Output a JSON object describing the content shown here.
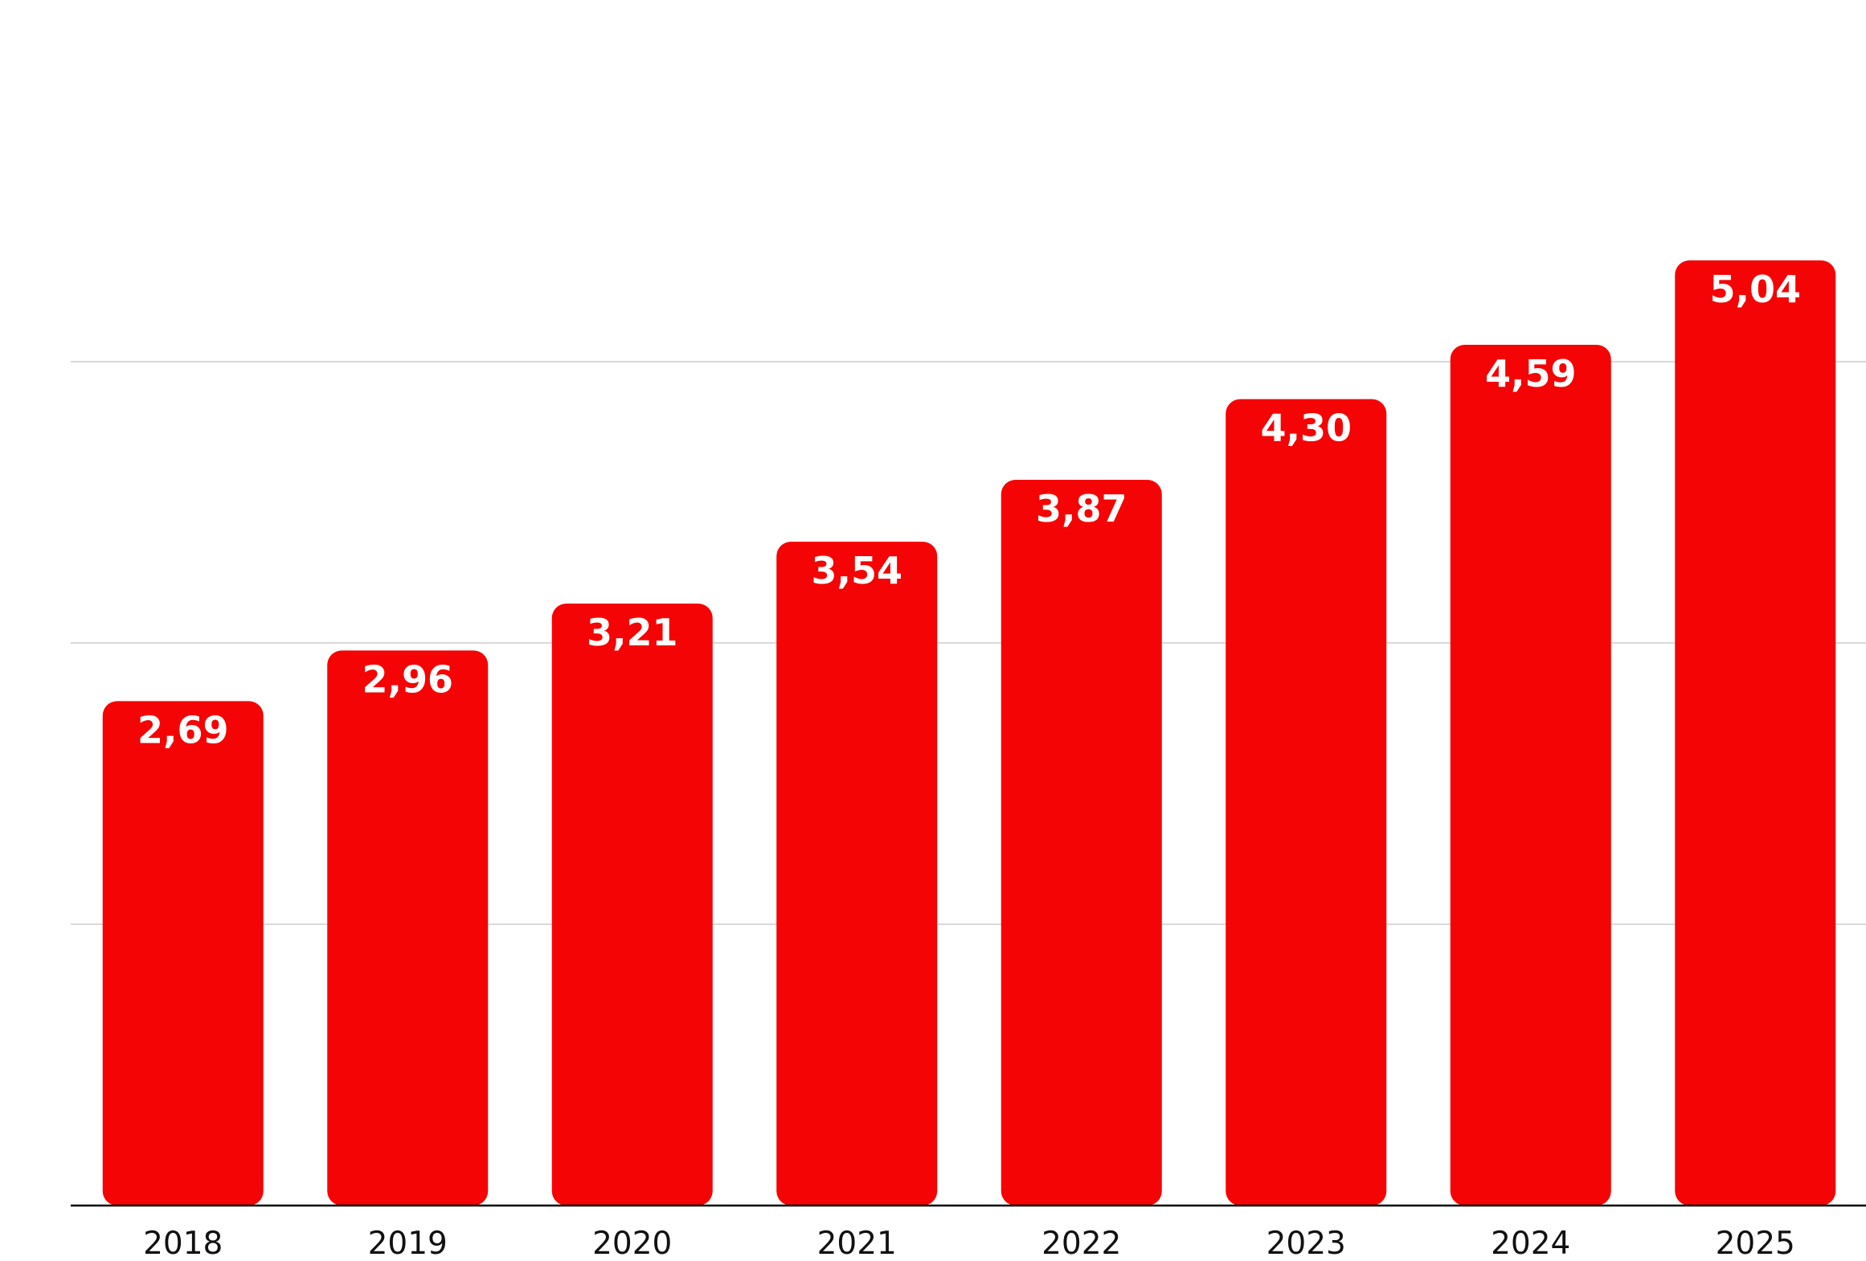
{
  "chart_data": {
    "type": "bar",
    "categories": [
      "2018",
      "2019",
      "2020",
      "2021",
      "2022",
      "2023",
      "2024",
      "2025"
    ],
    "values": [
      2.69,
      2.96,
      3.21,
      3.54,
      3.87,
      4.3,
      4.59,
      5.04
    ],
    "value_labels": [
      "2,69",
      "2,96",
      "3,21",
      "3,54",
      "3,87",
      "4,30",
      "4,59",
      "5,04"
    ],
    "title": "",
    "xlabel": "",
    "ylabel": "",
    "ylim": [
      0,
      6
    ],
    "y_gridlines": [
      1.5,
      3,
      4.5
    ],
    "grid": true,
    "legend": "none",
    "colors": {
      "bar": "#f40404",
      "label": "#ffffff",
      "grid": "#d9d9d9",
      "axis": "#000000"
    }
  }
}
